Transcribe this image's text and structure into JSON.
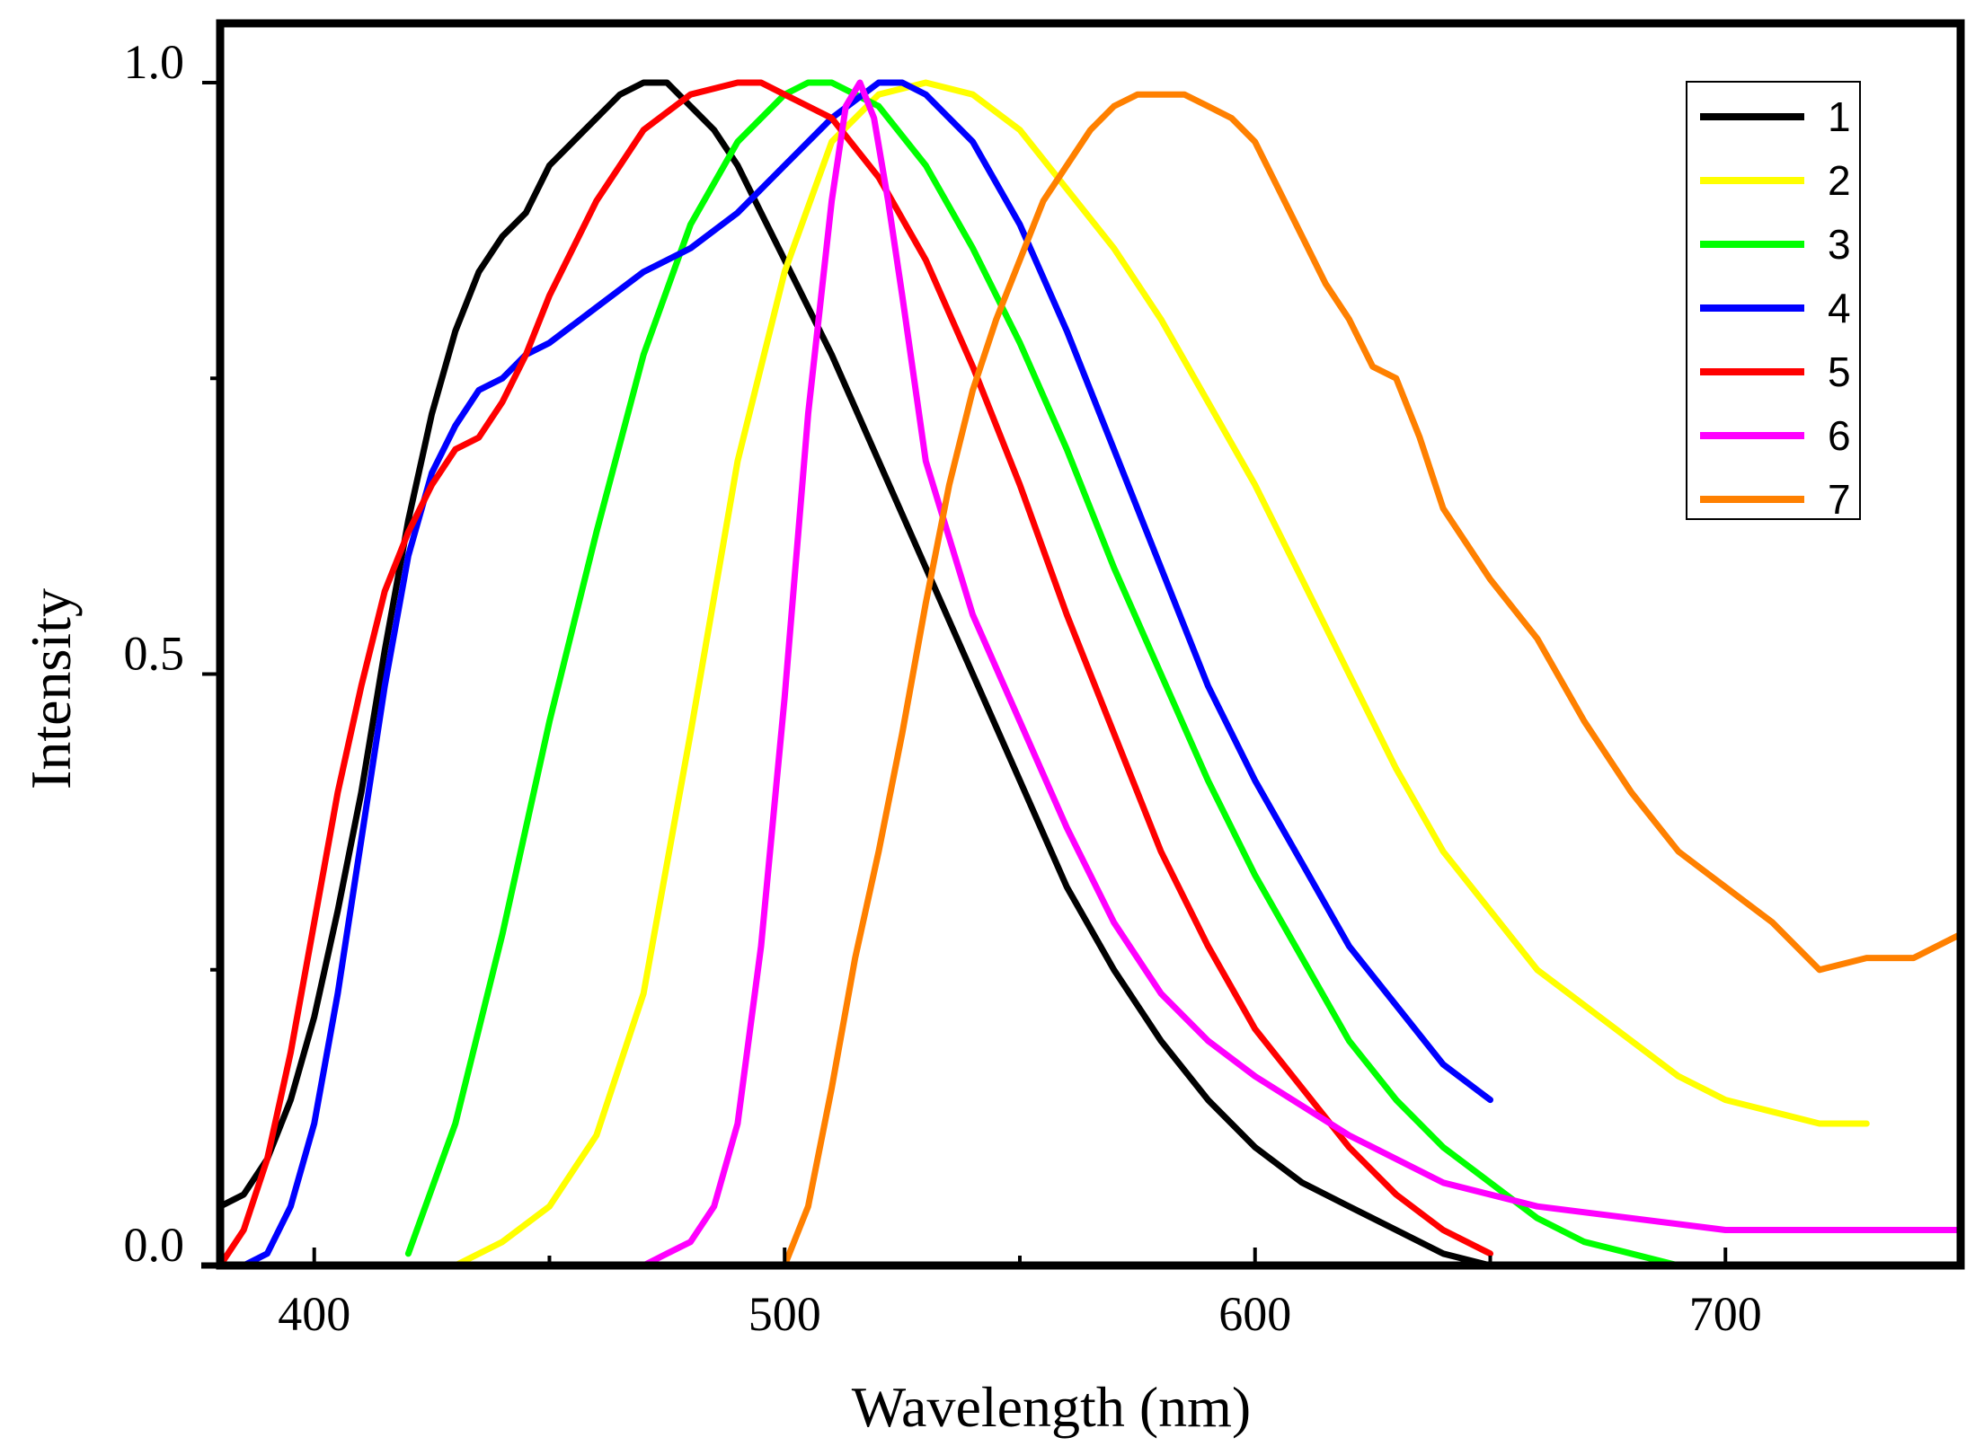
{
  "chart_data": {
    "type": "line",
    "title": "",
    "xlabel": "Wavelength (nm)",
    "ylabel": "Intensity",
    "xlim": [
      380,
      750
    ],
    "ylim": [
      0,
      1.0
    ],
    "xticks": [
      400,
      500,
      600,
      700
    ],
    "xtick_labels": [
      "400",
      "500",
      "600",
      "700"
    ],
    "yticks": [
      0,
      0.5,
      1.0
    ],
    "ytick_labels": [
      "0.0",
      "0.5",
      "1.0"
    ],
    "legend_position": "top-right",
    "grid": false,
    "series": [
      {
        "name": "1",
        "color": "#000000",
        "x": [
          380,
          385,
          390,
          395,
          400,
          405,
          410,
          415,
          420,
          425,
          430,
          435,
          440,
          445,
          450,
          455,
          460,
          465,
          470,
          475,
          480,
          485,
          490,
          495,
          500,
          510,
          520,
          530,
          540,
          550,
          560,
          570,
          580,
          590,
          600,
          610,
          620,
          630,
          640,
          650
        ],
        "y": [
          0.05,
          0.06,
          0.09,
          0.14,
          0.21,
          0.3,
          0.4,
          0.52,
          0.63,
          0.72,
          0.79,
          0.84,
          0.87,
          0.89,
          0.93,
          0.95,
          0.97,
          0.99,
          1.0,
          1.0,
          0.98,
          0.96,
          0.93,
          0.89,
          0.85,
          0.77,
          0.68,
          0.59,
          0.5,
          0.41,
          0.32,
          0.25,
          0.19,
          0.14,
          0.1,
          0.07,
          0.05,
          0.03,
          0.01,
          0.0
        ]
      },
      {
        "name": "2",
        "color": "#ffff00",
        "x": [
          420,
          430,
          440,
          450,
          460,
          470,
          480,
          490,
          500,
          510,
          520,
          530,
          540,
          550,
          560,
          570,
          580,
          590,
          600,
          610,
          620,
          630,
          640,
          650,
          660,
          670,
          680,
          690,
          700,
          710,
          720,
          730
        ],
        "y": [
          0.0,
          0.0,
          0.02,
          0.05,
          0.11,
          0.23,
          0.45,
          0.68,
          0.84,
          0.95,
          0.99,
          1.0,
          0.99,
          0.96,
          0.91,
          0.86,
          0.8,
          0.73,
          0.66,
          0.58,
          0.5,
          0.42,
          0.35,
          0.3,
          0.25,
          0.22,
          0.19,
          0.16,
          0.14,
          0.13,
          0.12,
          0.12
        ]
      },
      {
        "name": "3",
        "color": "#00ff00",
        "x": [
          420,
          430,
          440,
          450,
          460,
          470,
          480,
          490,
          500,
          505,
          510,
          520,
          530,
          540,
          550,
          560,
          570,
          580,
          590,
          600,
          610,
          620,
          630,
          640,
          650,
          660,
          670,
          680,
          690,
          700
        ],
        "y": [
          0.01,
          0.12,
          0.28,
          0.46,
          0.62,
          0.77,
          0.88,
          0.95,
          0.99,
          1.0,
          1.0,
          0.98,
          0.93,
          0.86,
          0.78,
          0.69,
          0.59,
          0.5,
          0.41,
          0.33,
          0.26,
          0.19,
          0.14,
          0.1,
          0.07,
          0.04,
          0.02,
          0.01,
          0.0,
          0.0
        ]
      },
      {
        "name": "4",
        "color": "#0000ff",
        "x": [
          380,
          385,
          390,
          395,
          400,
          405,
          410,
          415,
          420,
          425,
          430,
          435,
          440,
          445,
          450,
          460,
          470,
          480,
          490,
          500,
          510,
          520,
          525,
          530,
          540,
          550,
          560,
          570,
          580,
          590,
          600,
          610,
          620,
          630,
          640,
          650
        ],
        "y": [
          0.0,
          0.0,
          0.01,
          0.05,
          0.12,
          0.23,
          0.36,
          0.49,
          0.6,
          0.67,
          0.71,
          0.74,
          0.75,
          0.77,
          0.78,
          0.81,
          0.84,
          0.86,
          0.89,
          0.93,
          0.97,
          1.0,
          1.0,
          0.99,
          0.95,
          0.88,
          0.79,
          0.69,
          0.59,
          0.49,
          0.41,
          0.34,
          0.27,
          0.22,
          0.17,
          0.14
        ]
      },
      {
        "name": "5",
        "color": "#ff0000",
        "x": [
          380,
          385,
          390,
          395,
          400,
          405,
          410,
          415,
          420,
          425,
          430,
          435,
          440,
          445,
          450,
          460,
          470,
          480,
          490,
          495,
          500,
          510,
          520,
          530,
          540,
          550,
          560,
          570,
          580,
          590,
          600,
          610,
          620,
          630,
          640,
          650
        ],
        "y": [
          0.0,
          0.03,
          0.09,
          0.18,
          0.29,
          0.4,
          0.49,
          0.57,
          0.62,
          0.66,
          0.69,
          0.7,
          0.73,
          0.77,
          0.82,
          0.9,
          0.96,
          0.99,
          1.0,
          1.0,
          0.99,
          0.97,
          0.92,
          0.85,
          0.76,
          0.66,
          0.55,
          0.45,
          0.35,
          0.27,
          0.2,
          0.15,
          0.1,
          0.06,
          0.03,
          0.01
        ]
      },
      {
        "name": "6",
        "color": "#ff00ff",
        "x": [
          450,
          460,
          465,
          470,
          475,
          480,
          485,
          490,
          495,
          500,
          505,
          510,
          513,
          516,
          519,
          522,
          525,
          530,
          540,
          550,
          560,
          570,
          580,
          590,
          600,
          620,
          640,
          660,
          680,
          700,
          720,
          750
        ],
        "y": [
          0.0,
          0.0,
          0.0,
          0.0,
          0.01,
          0.02,
          0.05,
          0.12,
          0.27,
          0.48,
          0.72,
          0.9,
          0.98,
          1.0,
          0.97,
          0.9,
          0.82,
          0.68,
          0.55,
          0.46,
          0.37,
          0.29,
          0.23,
          0.19,
          0.16,
          0.11,
          0.07,
          0.05,
          0.04,
          0.03,
          0.03,
          0.03
        ]
      },
      {
        "name": "7",
        "color": "#ff8000",
        "x": [
          500,
          505,
          510,
          515,
          520,
          525,
          530,
          535,
          540,
          545,
          550,
          555,
          560,
          565,
          570,
          575,
          580,
          585,
          590,
          595,
          600,
          605,
          610,
          615,
          620,
          625,
          630,
          635,
          640,
          645,
          650,
          660,
          670,
          680,
          690,
          700,
          710,
          720,
          730,
          740,
          750
        ],
        "y": [
          0.0,
          0.05,
          0.15,
          0.26,
          0.35,
          0.45,
          0.56,
          0.66,
          0.74,
          0.8,
          0.85,
          0.9,
          0.93,
          0.96,
          0.98,
          0.99,
          0.99,
          0.99,
          0.98,
          0.97,
          0.95,
          0.91,
          0.87,
          0.83,
          0.8,
          0.76,
          0.75,
          0.7,
          0.64,
          0.61,
          0.58,
          0.53,
          0.46,
          0.4,
          0.35,
          0.32,
          0.29,
          0.25,
          0.26,
          0.26,
          0.28
        ]
      }
    ]
  }
}
